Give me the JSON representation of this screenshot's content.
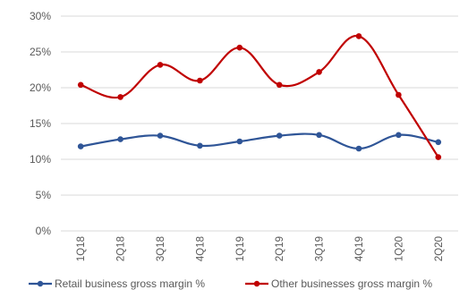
{
  "chart_data": {
    "type": "line",
    "categories": [
      "1Q18",
      "2Q18",
      "3Q18",
      "4Q18",
      "1Q19",
      "2Q19",
      "3Q19",
      "4Q19",
      "1Q20",
      "2Q20"
    ],
    "series": [
      {
        "name": "Retail business gross margin %",
        "color": "#2f5597",
        "values": [
          11.8,
          12.8,
          13.3,
          11.9,
          12.5,
          13.3,
          13.4,
          11.5,
          13.4,
          12.4
        ]
      },
      {
        "name": "Other businesses gross margin %",
        "color": "#c00000",
        "values": [
          20.4,
          18.7,
          23.2,
          21.0,
          25.6,
          20.4,
          22.2,
          27.2,
          19.0,
          10.3
        ]
      }
    ],
    "y_ticks": [
      "0%",
      "5%",
      "10%",
      "15%",
      "20%",
      "25%",
      "30%"
    ],
    "ylim": [
      0,
      30
    ],
    "ytick_step": 5,
    "grid": true,
    "legend_position": "bottom"
  }
}
